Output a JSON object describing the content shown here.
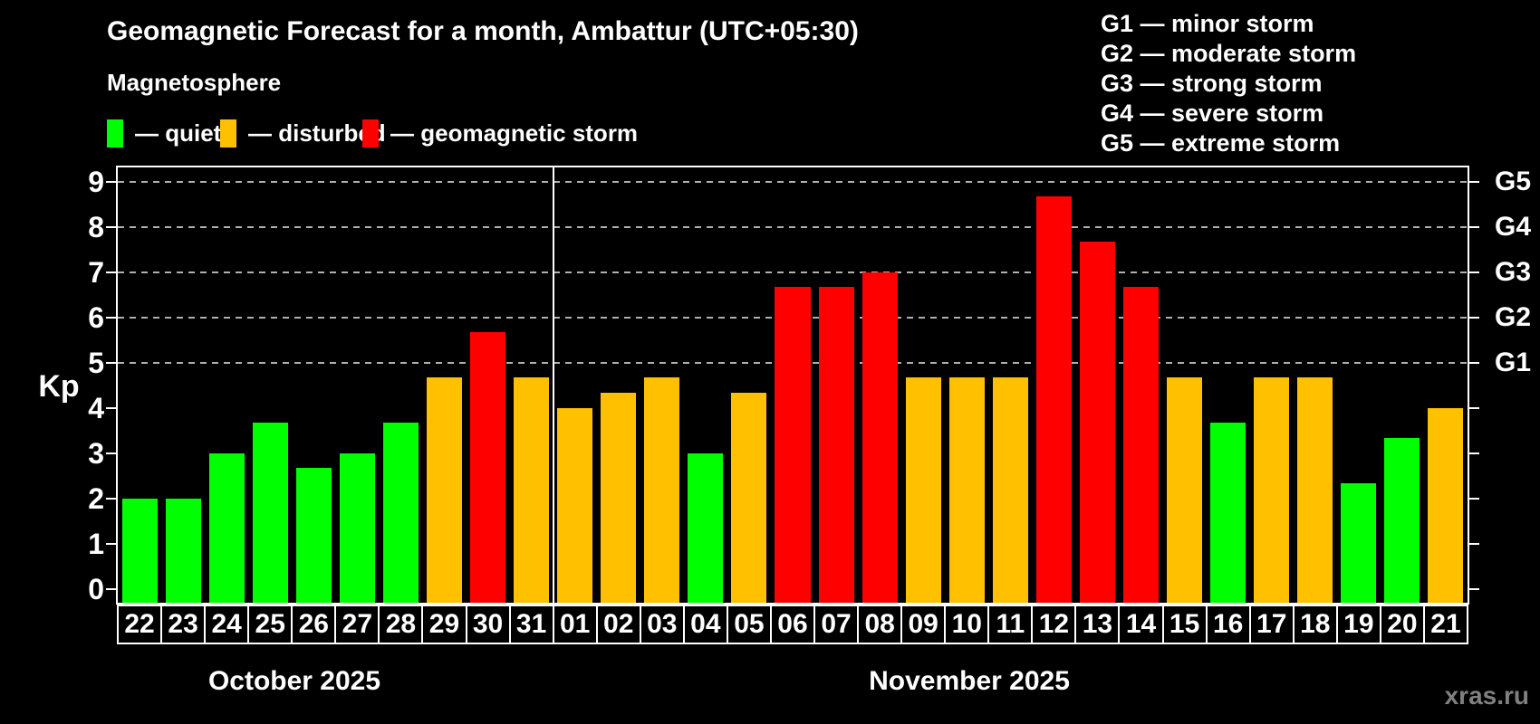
{
  "title": "Geomagnetic Forecast for a month, Ambattur (UTC+05:30)",
  "subtitle": "Magnetosphere",
  "watermark": "xras.ru",
  "colors": {
    "quiet": "#00ff00",
    "disturbed": "#ffc000",
    "storm": "#ff0000",
    "background": "#000000",
    "text": "#ffffff",
    "grid": "#b0b0b0",
    "watermark": "#808080"
  },
  "legend": {
    "items": [
      {
        "status": "quiet",
        "label": "— quiet"
      },
      {
        "status": "disturbed",
        "label": "— disturbed"
      },
      {
        "status": "storm",
        "label": "— geomagnetic storm"
      }
    ]
  },
  "g_legend": {
    "items": [
      "G1 — minor storm",
      "G2 — moderate storm",
      "G3 — strong storm",
      "G4 — severe storm",
      "G5 — extreme storm"
    ]
  },
  "axis": {
    "y_label": "Kp",
    "left_ticks": [
      "0",
      "1",
      "2",
      "3",
      "4",
      "5",
      "6",
      "7",
      "8",
      "9"
    ],
    "right_labels": [
      {
        "kp": 5,
        "label": "G1"
      },
      {
        "kp": 6,
        "label": "G2"
      },
      {
        "kp": 7,
        "label": "G3"
      },
      {
        "kp": 8,
        "label": "G4"
      },
      {
        "kp": 9,
        "label": "G5"
      }
    ],
    "gridlines_kp": [
      5,
      6,
      7,
      8,
      9
    ]
  },
  "chart_data": {
    "type": "bar",
    "title": "Geomagnetic Forecast for a month, Ambattur (UTC+05:30)",
    "xlabel": "",
    "ylabel": "Kp",
    "ylim": [
      0,
      9
    ],
    "grid": "horizontal dashed lines at Kp 5,6,7,8,9 (G1–G5 levels)",
    "legend_position": "top-left",
    "months": [
      {
        "label": "October 2025",
        "days": [
          "22",
          "23",
          "24",
          "25",
          "26",
          "27",
          "28",
          "29",
          "30",
          "31"
        ],
        "values": [
          2,
          2,
          3,
          3.67,
          2.67,
          3,
          3.67,
          4.67,
          5.67,
          4.67
        ],
        "status": [
          "quiet",
          "quiet",
          "quiet",
          "quiet",
          "quiet",
          "quiet",
          "quiet",
          "disturbed",
          "storm",
          "disturbed"
        ]
      },
      {
        "label": "November 2025",
        "days": [
          "01",
          "02",
          "03",
          "04",
          "05",
          "06",
          "07",
          "08",
          "09",
          "10",
          "11",
          "12",
          "13",
          "14",
          "15",
          "16",
          "17",
          "18",
          "19",
          "20",
          "21"
        ],
        "values": [
          4,
          4.33,
          4.67,
          3,
          4.33,
          6.67,
          6.67,
          7,
          4.67,
          4.67,
          4.67,
          8.67,
          7.67,
          6.67,
          4.67,
          3.67,
          4.67,
          4.67,
          2.33,
          3.33,
          4
        ],
        "status": [
          "disturbed",
          "disturbed",
          "disturbed",
          "quiet",
          "disturbed",
          "storm",
          "storm",
          "storm",
          "disturbed",
          "disturbed",
          "disturbed",
          "storm",
          "storm",
          "storm",
          "disturbed",
          "quiet",
          "disturbed",
          "disturbed",
          "quiet",
          "quiet",
          "disturbed"
        ]
      }
    ]
  }
}
